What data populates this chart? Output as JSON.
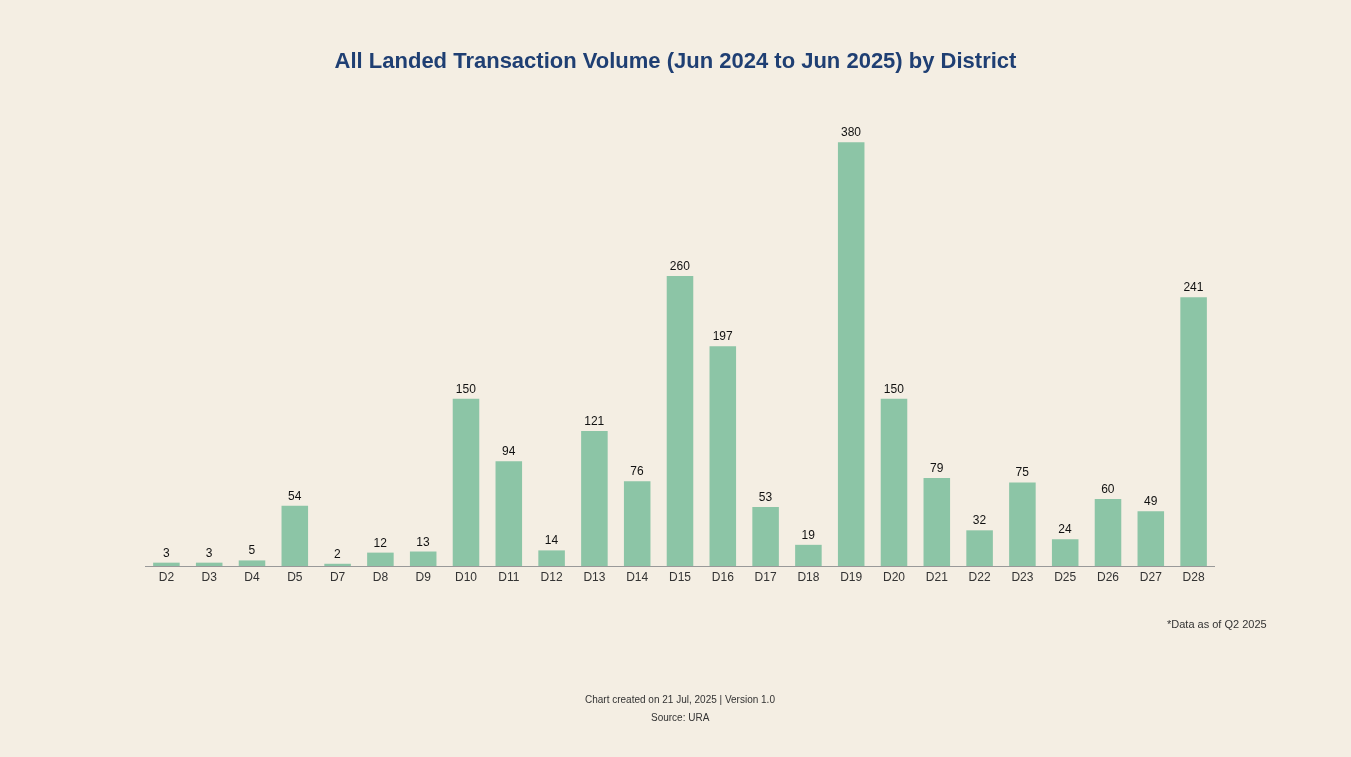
{
  "chart_data": {
    "type": "bar",
    "title": "All Landed Transaction Volume (Jun 2024 to Jun 2025) by District",
    "categories": [
      "D2",
      "D3",
      "D4",
      "D5",
      "D7",
      "D8",
      "D9",
      "D10",
      "D11",
      "D12",
      "D13",
      "D14",
      "D15",
      "D16",
      "D17",
      "D18",
      "D19",
      "D20",
      "D21",
      "D22",
      "D23",
      "D25",
      "D26",
      "D27",
      "D28"
    ],
    "values": [
      3,
      3,
      5,
      54,
      2,
      12,
      13,
      150,
      94,
      14,
      121,
      76,
      260,
      197,
      53,
      19,
      380,
      150,
      79,
      32,
      75,
      24,
      60,
      49,
      241
    ],
    "color": "#8cc5a6",
    "data_labels": true,
    "grid": false,
    "legend": false,
    "tick_labels": "x",
    "annotations": [
      "*Data as of Q2 2025",
      "Chart created on 21 Jul, 2025 | Version 1.0",
      "Source: URA"
    ]
  }
}
